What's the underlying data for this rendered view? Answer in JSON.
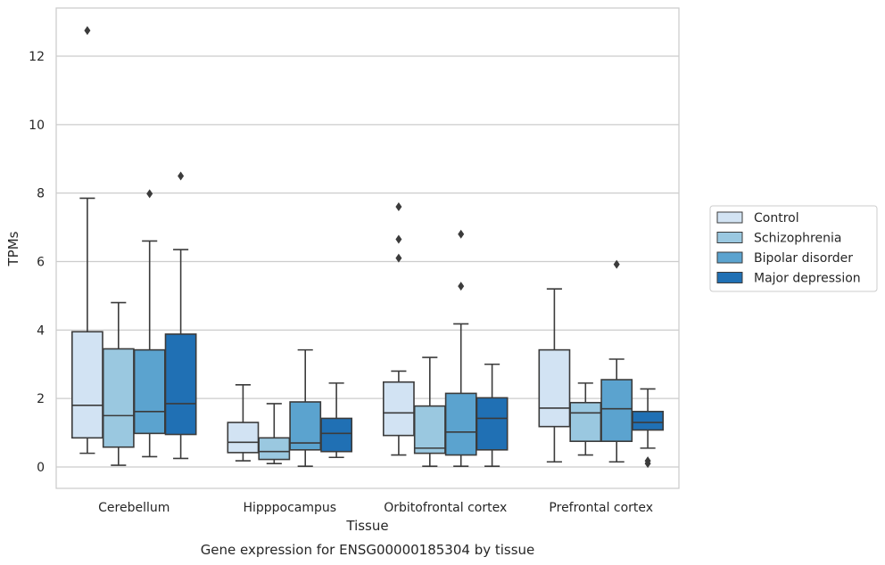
{
  "chart_data": {
    "type": "box",
    "title": "",
    "caption": "Gene expression for ENSG00000185304 by tissue",
    "xlabel": "Tissue",
    "ylabel": "TPMs",
    "ylim": [
      -0.6,
      13.4
    ],
    "yticks": [
      0,
      2,
      4,
      6,
      8,
      10,
      12
    ],
    "grid": "horizontal",
    "legend_position": "right",
    "categories": [
      "Cerebellum",
      "Hipppocampus",
      "Orbitofrontal cortex",
      "Prefrontal cortex"
    ],
    "series": [
      {
        "name": "Control",
        "color": "#d2e3f3",
        "boxes": [
          {
            "whislo": 0.4,
            "q1": 0.85,
            "med": 1.8,
            "q3": 3.95,
            "whishi": 7.85,
            "fliers": [
              12.75
            ]
          },
          {
            "whislo": 0.18,
            "q1": 0.42,
            "med": 0.72,
            "q3": 1.3,
            "whishi": 2.4,
            "fliers": []
          },
          {
            "whislo": 0.35,
            "q1": 0.92,
            "med": 1.58,
            "q3": 2.48,
            "whishi": 2.8,
            "fliers": [
              6.1,
              6.65,
              7.6
            ]
          },
          {
            "whislo": 0.15,
            "q1": 1.18,
            "med": 1.72,
            "q3": 3.42,
            "whishi": 5.2,
            "fliers": []
          }
        ]
      },
      {
        "name": "Schizophrenia",
        "color": "#9ac8e0",
        "boxes": [
          {
            "whislo": 0.05,
            "q1": 0.58,
            "med": 1.5,
            "q3": 3.45,
            "whishi": 4.8,
            "fliers": []
          },
          {
            "whislo": 0.1,
            "q1": 0.22,
            "med": 0.45,
            "q3": 0.85,
            "whishi": 1.85,
            "fliers": []
          },
          {
            "whislo": 0.02,
            "q1": 0.4,
            "med": 0.55,
            "q3": 1.78,
            "whishi": 3.2,
            "fliers": []
          },
          {
            "whislo": 0.35,
            "q1": 0.75,
            "med": 1.58,
            "q3": 1.88,
            "whishi": 2.45,
            "fliers": []
          }
        ]
      },
      {
        "name": "Bipolar disorder",
        "color": "#5ba3cf",
        "boxes": [
          {
            "whislo": 0.3,
            "q1": 0.98,
            "med": 1.62,
            "q3": 3.42,
            "whishi": 6.6,
            "fliers": [
              7.98
            ]
          },
          {
            "whislo": 0.02,
            "q1": 0.5,
            "med": 0.7,
            "q3": 1.9,
            "whishi": 3.42,
            "fliers": []
          },
          {
            "whislo": 0.02,
            "q1": 0.35,
            "med": 1.02,
            "q3": 2.15,
            "whishi": 4.18,
            "fliers": [
              5.28,
              6.8
            ]
          },
          {
            "whislo": 0.15,
            "q1": 0.75,
            "med": 1.7,
            "q3": 2.55,
            "whishi": 3.15,
            "fliers": [
              5.92
            ]
          }
        ]
      },
      {
        "name": "Major depression",
        "color": "#2070b4",
        "boxes": [
          {
            "whislo": 0.25,
            "q1": 0.95,
            "med": 1.85,
            "q3": 3.88,
            "whishi": 6.35,
            "fliers": [
              8.5
            ]
          },
          {
            "whislo": 0.28,
            "q1": 0.45,
            "med": 0.98,
            "q3": 1.42,
            "whishi": 2.45,
            "fliers": []
          },
          {
            "whislo": 0.02,
            "q1": 0.5,
            "med": 1.42,
            "q3": 2.02,
            "whishi": 3.0,
            "fliers": []
          },
          {
            "whislo": 0.55,
            "q1": 1.08,
            "med": 1.3,
            "q3": 1.62,
            "whishi": 2.28,
            "fliers": [
              0.1,
              0.18
            ]
          }
        ]
      }
    ]
  }
}
